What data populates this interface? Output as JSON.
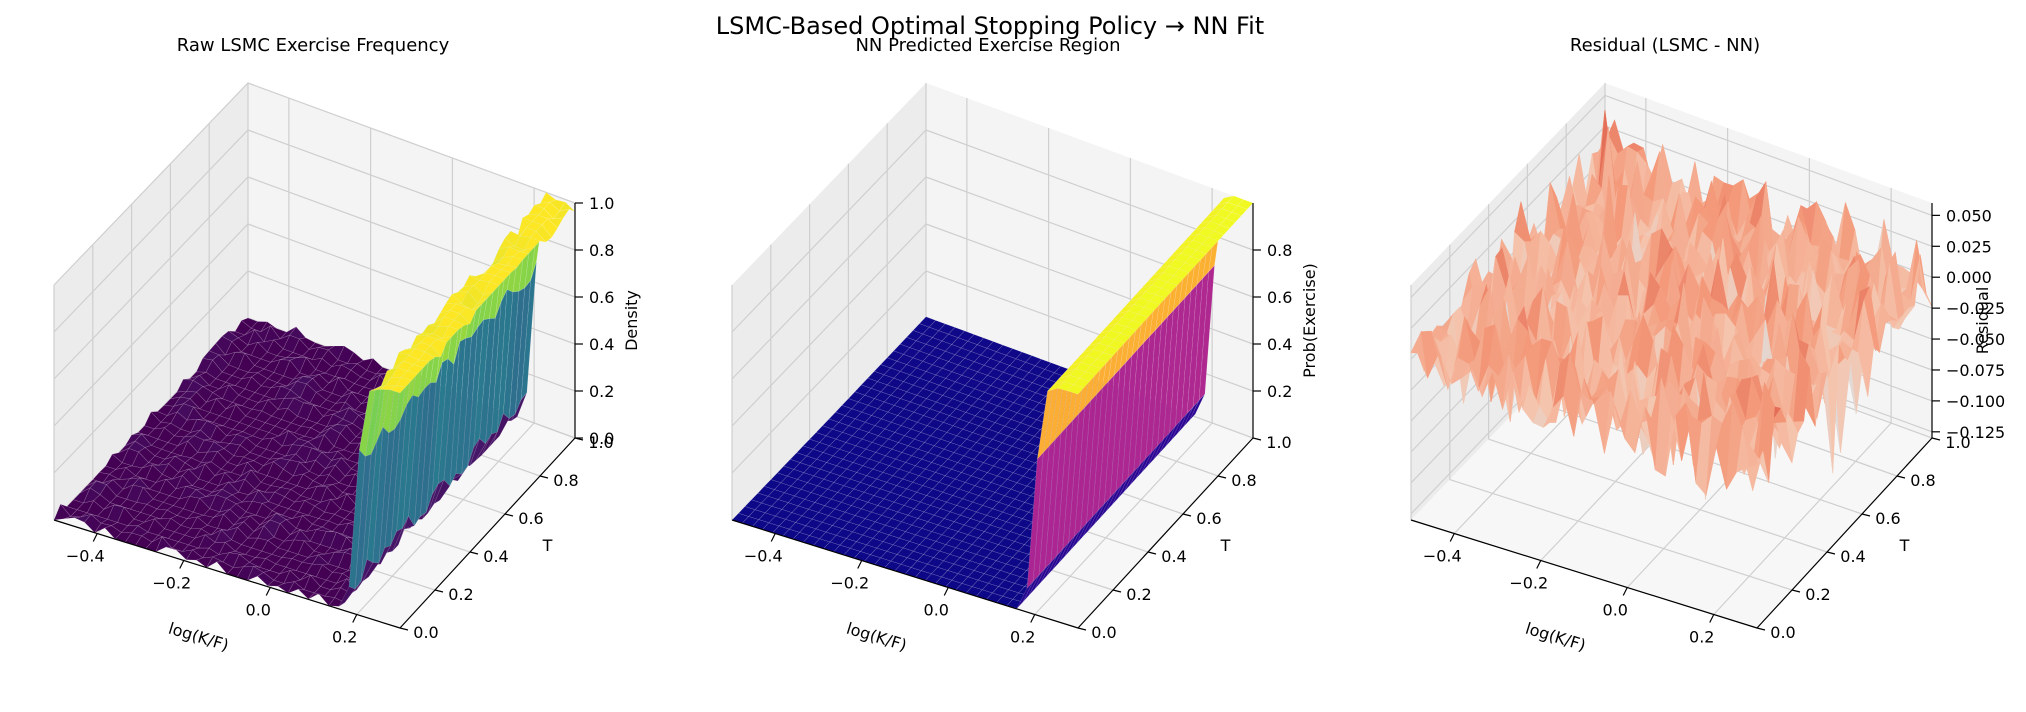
{
  "figure": {
    "suptitle": "LSMC-Based Optimal Stopping Policy → NN Fit"
  },
  "chart_data": [
    {
      "type": "surface3d",
      "title": "Raw LSMC Exercise Frequency",
      "xlabel": "log(K/F)",
      "ylabel": "T",
      "zlabel": "Density",
      "xlim": [
        -0.5,
        0.3
      ],
      "ylim": [
        0.0,
        1.0
      ],
      "zlim": [
        0.0,
        1.0
      ],
      "x_ticks": [
        "−0.4",
        "−0.2",
        "0.0",
        "0.2"
      ],
      "x_tick_values": [
        -0.4,
        -0.2,
        0.0,
        0.2
      ],
      "y_ticks": [
        "0.0",
        "0.2",
        "0.4",
        "0.6",
        "0.8",
        "1.0"
      ],
      "y_tick_values": [
        0.0,
        0.2,
        0.4,
        0.6,
        0.8,
        1.0
      ],
      "z_ticks": [
        "0.0",
        "0.2",
        "0.4",
        "0.6",
        "0.8",
        "1.0"
      ],
      "z_tick_values": [
        0.0,
        0.2,
        0.4,
        0.6,
        0.8,
        1.0
      ],
      "colormap": "viridis",
      "surface": {
        "description_level_low": 0.0,
        "level_high": 1.0,
        "boundary_x": 0.2,
        "noise_amplitude": 0.04
      }
    },
    {
      "type": "surface3d",
      "title": "NN Predicted Exercise Region",
      "xlabel": "log(K/F)",
      "ylabel": "T",
      "zlabel": "Prob(Exercise)",
      "xlim": [
        -0.5,
        0.3
      ],
      "ylim": [
        0.0,
        1.0
      ],
      "zlim": [
        0.0,
        1.0
      ],
      "x_ticks": [
        "−0.4",
        "−0.2",
        "0.0",
        "0.2"
      ],
      "x_tick_values": [
        -0.4,
        -0.2,
        0.0,
        0.2
      ],
      "y_ticks": [
        "0.0",
        "0.2",
        "0.4",
        "0.6",
        "0.8",
        "1.0"
      ],
      "y_tick_values": [
        0.0,
        0.2,
        0.4,
        0.6,
        0.8,
        1.0
      ],
      "z_ticks": [
        "0.2",
        "0.4",
        "0.6",
        "0.8"
      ],
      "z_tick_values": [
        0.2,
        0.4,
        0.6,
        0.8
      ],
      "colormap": "plasma",
      "surface": {
        "description_level_low": 0.0,
        "level_high": 1.0,
        "boundary_x": 0.2,
        "noise_amplitude": 0.0
      }
    },
    {
      "type": "surface3d",
      "title": "Residual (LSMC - NN)",
      "xlabel": "log(K/F)",
      "ylabel": "T",
      "zlabel": "Residual",
      "xlim": [
        -0.5,
        0.3
      ],
      "ylim": [
        0.0,
        1.0
      ],
      "zlim": [
        -0.13,
        0.06
      ],
      "x_ticks": [
        "−0.4",
        "−0.2",
        "0.0",
        "0.2"
      ],
      "x_tick_values": [
        -0.4,
        -0.2,
        0.0,
        0.2
      ],
      "y_ticks": [
        "0.0",
        "0.2",
        "0.4",
        "0.6",
        "0.8",
        "1.0"
      ],
      "y_tick_values": [
        0.0,
        0.2,
        0.4,
        0.6,
        0.8,
        1.0
      ],
      "z_ticks": [
        "−0.125",
        "−0.100",
        "−0.075",
        "−0.050",
        "−0.025",
        "0.000",
        "0.025",
        "0.050"
      ],
      "z_tick_values": [
        -0.125,
        -0.1,
        -0.075,
        -0.05,
        -0.025,
        0.0,
        0.025,
        0.05
      ],
      "colormap": "coolwarm",
      "surface": {
        "mean": 0.0,
        "noise_amplitude": 0.05
      }
    }
  ]
}
